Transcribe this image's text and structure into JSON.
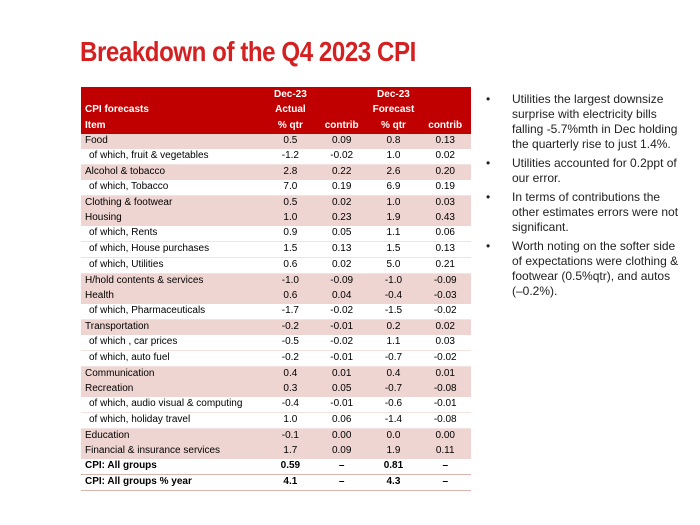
{
  "title": "Breakdown of the Q4 2023 CPI",
  "table": {
    "header_rows": [
      [
        "",
        "Dec-23",
        "",
        "Dec-23",
        ""
      ],
      [
        "CPI forecasts",
        "Actual",
        "",
        "Forecast",
        ""
      ],
      [
        "Item",
        "% qtr",
        "contrib",
        "% qtr",
        "contrib"
      ]
    ],
    "rows": [
      {
        "type": "main",
        "cells": [
          "Food",
          "0.5",
          "0.09",
          "0.8",
          "0.13"
        ]
      },
      {
        "type": "sub",
        "cells": [
          "of which, fruit & vegetables",
          "-1.2",
          "-0.02",
          "1.0",
          "0.02"
        ]
      },
      {
        "type": "main",
        "cells": [
          "Alcohol & tobacco",
          "2.8",
          "0.22",
          "2.6",
          "0.20"
        ]
      },
      {
        "type": "sub",
        "cells": [
          "of which, Tobacco",
          "7.0",
          "0.19",
          "6.9",
          "0.19"
        ]
      },
      {
        "type": "main",
        "cells": [
          "Clothing & footwear",
          "0.5",
          "0.02",
          "1.0",
          "0.03"
        ]
      },
      {
        "type": "main",
        "cells": [
          "Housing",
          "1.0",
          "0.23",
          "1.9",
          "0.43"
        ]
      },
      {
        "type": "sub",
        "cells": [
          "of which, Rents",
          "0.9",
          "0.05",
          "1.1",
          "0.06"
        ]
      },
      {
        "type": "sub",
        "cells": [
          "of which, House purchases",
          "1.5",
          "0.13",
          "1.5",
          "0.13"
        ]
      },
      {
        "type": "sub",
        "cells": [
          "of which, Utilities",
          "0.6",
          "0.02",
          "5.0",
          "0.21"
        ]
      },
      {
        "type": "main",
        "cells": [
          "H/hold contents & services",
          "-1.0",
          "-0.09",
          "-1.0",
          "-0.09"
        ]
      },
      {
        "type": "main",
        "cells": [
          "Health",
          "0.6",
          "0.04",
          "-0.4",
          "-0.03"
        ]
      },
      {
        "type": "sub",
        "cells": [
          "of which, Pharmaceuticals",
          "-1.7",
          "-0.02",
          "-1.5",
          "-0.02"
        ]
      },
      {
        "type": "main",
        "cells": [
          "Transportation",
          "-0.2",
          "-0.01",
          "0.2",
          "0.02"
        ]
      },
      {
        "type": "sub",
        "cells": [
          "of which , car prices",
          "-0.5",
          "-0.02",
          "1.1",
          "0.03"
        ]
      },
      {
        "type": "sub",
        "cells": [
          "of which, auto fuel",
          "-0.2",
          "-0.01",
          "-0.7",
          "-0.02"
        ]
      },
      {
        "type": "main",
        "cells": [
          "Communication",
          "0.4",
          "0.01",
          "0.4",
          "0.01"
        ]
      },
      {
        "type": "main",
        "cells": [
          "Recreation",
          "0.3",
          "0.05",
          "-0.7",
          "-0.08"
        ]
      },
      {
        "type": "sub",
        "cells": [
          "of which, audio visual & computing",
          "-0.4",
          "-0.01",
          "-0.6",
          "-0.01"
        ]
      },
      {
        "type": "sub",
        "cells": [
          "of which, holiday travel",
          "1.0",
          "0.06",
          "-1.4",
          "-0.08"
        ]
      },
      {
        "type": "main",
        "cells": [
          "Education",
          "-0.1",
          "0.00",
          "0.0",
          "0.00"
        ]
      },
      {
        "type": "main",
        "cells": [
          "Financial & insurance services",
          "1.7",
          "0.09",
          "1.9",
          "0.11"
        ]
      },
      {
        "type": "total",
        "cells": [
          "CPI: All groups",
          "0.59",
          "–",
          "0.81",
          "–"
        ]
      },
      {
        "type": "total",
        "cells": [
          "CPI: All groups % year",
          "4.1",
          "–",
          "4.3",
          "–"
        ]
      }
    ]
  },
  "bullets": [
    "Utilities the largest downsize surprise with electricity bills falling -5.7%mth in Dec holding the quarterly rise to just 1.4%.",
    "Utilities accounted for 0.2ppt of our error.",
    "In terms of contributions the other estimates errors were not significant.",
    "Worth noting on the softer side of expectations were clothing & footwear (0.5%qtr), and autos (–0.2%)."
  ],
  "bullet_symbol": "•",
  "colors": {
    "title": "#d42020",
    "header_bg": "#c00000",
    "main_row_bg": "#efd5d1"
  }
}
